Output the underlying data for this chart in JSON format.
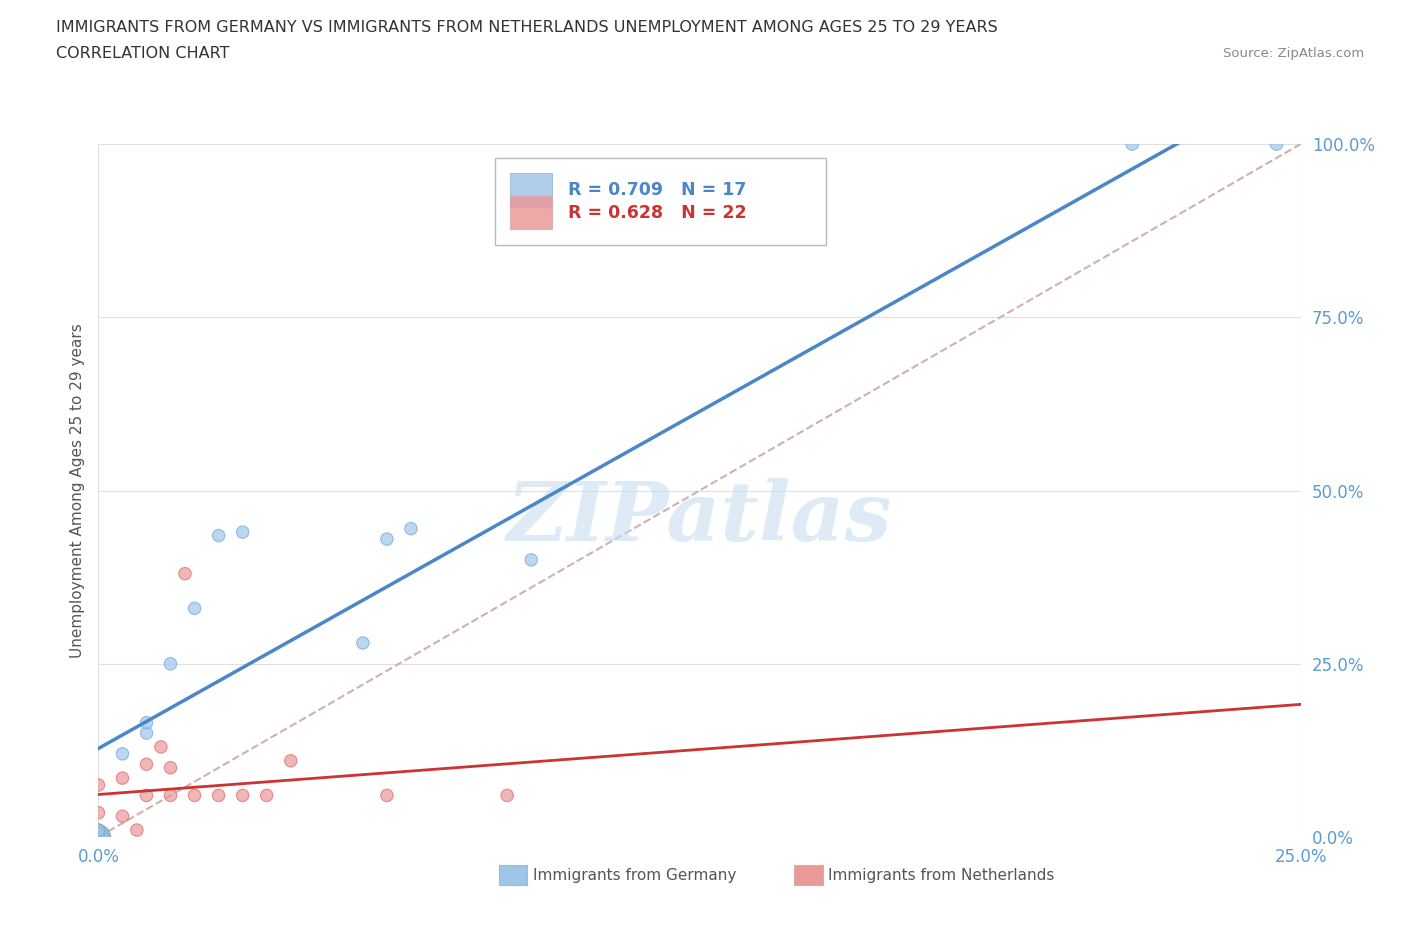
{
  "title_line1": "IMMIGRANTS FROM GERMANY VS IMMIGRANTS FROM NETHERLANDS UNEMPLOYMENT AMONG AGES 25 TO 29 YEARS",
  "title_line2": "CORRELATION CHART",
  "source_text": "Source: ZipAtlas.com",
  "ylabel": "Unemployment Among Ages 25 to 29 years",
  "xlim": [
    0.0,
    0.25
  ],
  "ylim": [
    0.0,
    1.0
  ],
  "xtick_vals": [
    0.0,
    0.25
  ],
  "xtick_labels": [
    "0.0%",
    "25.0%"
  ],
  "ytick_vals": [
    0.0,
    0.25,
    0.5,
    0.75,
    1.0
  ],
  "ytick_labels": [
    "0.0%",
    "25.0%",
    "50.0%",
    "75.0%",
    "100.0%"
  ],
  "germany_color": "#9fc5e8",
  "netherlands_color": "#ea9999",
  "germany_edge_color": "#6fa8dc",
  "netherlands_edge_color": "#e06666",
  "germany_label": "Immigrants from Germany",
  "netherlands_label": "Immigrants from Netherlands",
  "legend_r_germany": "R = 0.709",
  "legend_n_germany": "N = 17",
  "legend_r_netherlands": "R = 0.628",
  "legend_n_netherlands": "N = 22",
  "watermark_text": "ZIPatlas",
  "background_color": "#ffffff",
  "grid_color": "#e0e0e0",
  "germany_x": [
    0.0,
    0.0,
    0.0,
    0.0,
    0.005,
    0.01,
    0.01,
    0.015,
    0.02,
    0.025,
    0.03,
    0.055,
    0.06,
    0.065,
    0.09,
    0.215,
    0.245
  ],
  "germany_y": [
    0.0,
    0.0,
    0.005,
    0.01,
    0.12,
    0.15,
    0.165,
    0.25,
    0.33,
    0.435,
    0.44,
    0.28,
    0.43,
    0.445,
    0.4,
    1.0,
    1.0
  ],
  "germany_sizes": [
    300,
    200,
    80,
    80,
    80,
    80,
    80,
    80,
    80,
    80,
    80,
    80,
    80,
    80,
    80,
    80,
    80
  ],
  "netherlands_x": [
    0.0,
    0.0,
    0.0,
    0.0,
    0.0,
    0.0,
    0.005,
    0.005,
    0.008,
    0.01,
    0.01,
    0.013,
    0.015,
    0.015,
    0.018,
    0.02,
    0.025,
    0.03,
    0.035,
    0.04,
    0.06,
    0.085
  ],
  "netherlands_y": [
    0.0,
    0.0,
    0.005,
    0.01,
    0.035,
    0.075,
    0.03,
    0.085,
    0.01,
    0.06,
    0.105,
    0.13,
    0.06,
    0.1,
    0.38,
    0.06,
    0.06,
    0.06,
    0.06,
    0.11,
    0.06,
    0.06
  ],
  "netherlands_sizes": [
    300,
    200,
    80,
    80,
    80,
    80,
    80,
    80,
    80,
    80,
    80,
    80,
    80,
    80,
    80,
    80,
    80,
    80,
    80,
    80,
    80,
    80
  ],
  "trend_line_color_germany": "#4a86c8",
  "trend_line_color_netherlands": "#cc3333",
  "ref_line_color": "#d0b0b0",
  "tick_color": "#5b9bd5",
  "axis_label_color": "#555555"
}
